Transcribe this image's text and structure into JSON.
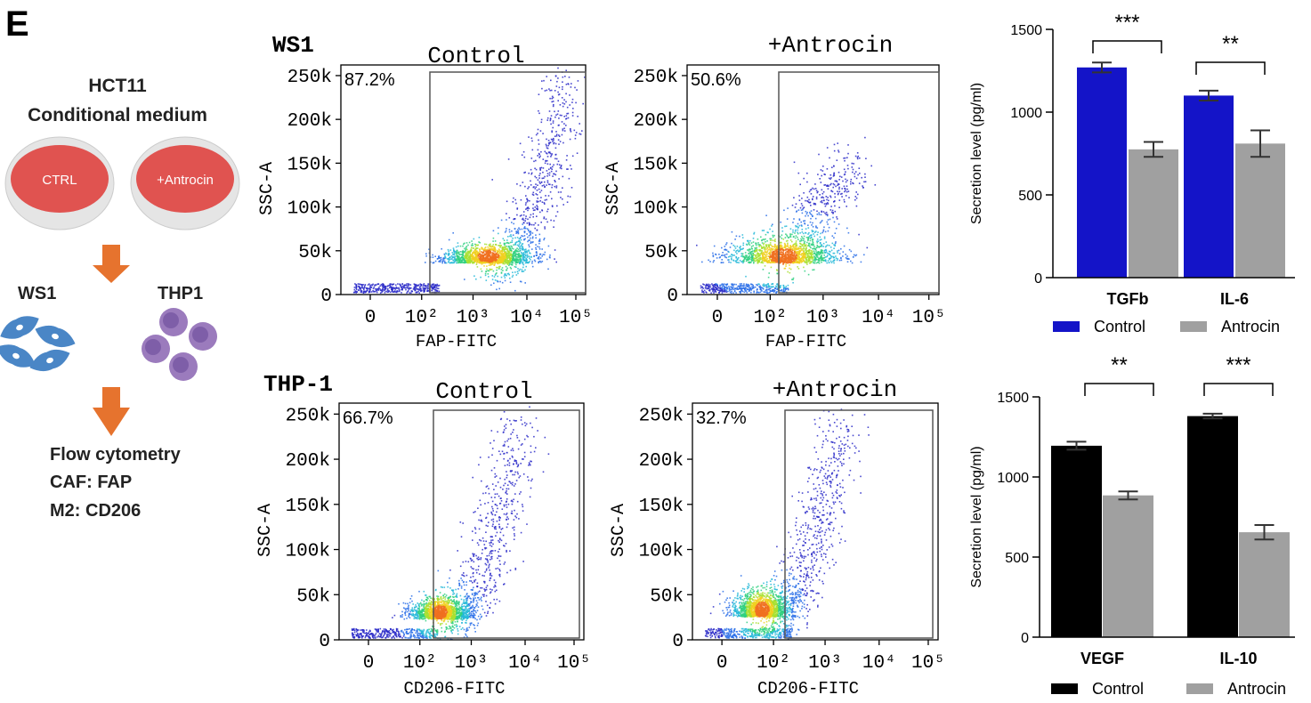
{
  "panel_letter": "E",
  "schematic": {
    "title_line1": "HCT11",
    "title_line2": "Conditional medium",
    "dish_ctrl": "CTRL",
    "dish_treated": "+Antrocin",
    "cell_left": "WS1",
    "cell_right": "THP1",
    "method_line1": "Flow cytometry",
    "method_line2": "CAF: FAP",
    "method_line3": "M2: CD206",
    "colors": {
      "dish": "#e0524f",
      "arrow": "#e6732e",
      "fibroblast": "#4a86c6",
      "monocyte": "#9b7bbd"
    }
  },
  "chart_data": [
    {
      "type": "scatter",
      "row_label": "WS1",
      "title": "Control",
      "xlabel": "FAP-FITC",
      "ylabel": "SSC-A",
      "x_ticks": [
        "0",
        "10²",
        "10³",
        "10⁴",
        "10⁵"
      ],
      "y_ticks": [
        "0",
        "50k",
        "100k",
        "150k",
        "200k",
        "250k"
      ],
      "ylim": [
        0,
        262144
      ],
      "gate_percent": "87.2%"
    },
    {
      "type": "scatter",
      "row_label": "",
      "title": "+Antrocin",
      "xlabel": "FAP-FITC",
      "ylabel": "SSC-A",
      "x_ticks": [
        "0",
        "10²",
        "10³",
        "10⁴",
        "10⁵"
      ],
      "y_ticks": [
        "0",
        "50k",
        "100k",
        "150k",
        "200k",
        "250k"
      ],
      "ylim": [
        0,
        262144
      ],
      "gate_percent": "50.6%"
    },
    {
      "type": "scatter",
      "row_label": "THP-1",
      "title": "Control",
      "xlabel": "CD206-FITC",
      "ylabel": "SSC-A",
      "x_ticks": [
        "0",
        "10²",
        "10³",
        "10⁴",
        "10⁵"
      ],
      "y_ticks": [
        "0",
        "50k",
        "100k",
        "150k",
        "200k",
        "250k"
      ],
      "ylim": [
        0,
        262144
      ],
      "gate_percent": "66.7%"
    },
    {
      "type": "scatter",
      "row_label": "",
      "title": "+Antrocin",
      "xlabel": "CD206-FITC",
      "ylabel": "SSC-A",
      "x_ticks": [
        "0",
        "10²",
        "10³",
        "10⁴",
        "10⁵"
      ],
      "y_ticks": [
        "0",
        "50k",
        "100k",
        "150k",
        "200k",
        "250k"
      ],
      "ylim": [
        0,
        262144
      ],
      "gate_percent": "32.7%"
    },
    {
      "type": "bar",
      "ylabel": "Secretion level (pg/ml)",
      "ylim": [
        0,
        1500
      ],
      "y_ticks": [
        "0",
        "500",
        "1000",
        "1500"
      ],
      "y_tick_values": [
        0,
        500,
        1000,
        1500
      ],
      "categories": [
        "TGFb",
        "IL-6"
      ],
      "series": [
        {
          "name": "Control",
          "color": "#1414c8",
          "values": [
            1270,
            1100
          ],
          "errors": [
            30,
            30
          ]
        },
        {
          "name": "Antrocin",
          "color": "#a0a0a0",
          "values": [
            775,
            810
          ],
          "errors": [
            45,
            80
          ]
        }
      ],
      "significance": [
        "***",
        "**"
      ],
      "legend_position": "bottom"
    },
    {
      "type": "bar",
      "ylabel": "Secretion level (pg/ml)",
      "ylim": [
        0,
        1500
      ],
      "y_ticks": [
        "0",
        "500",
        "1000",
        "1500"
      ],
      "y_tick_values": [
        0,
        500,
        1000,
        1500
      ],
      "categories": [
        "VEGF",
        "IL-10"
      ],
      "series": [
        {
          "name": "Control",
          "color": "#000000",
          "values": [
            1195,
            1380
          ],
          "errors": [
            25,
            15
          ]
        },
        {
          "name": "Antrocin",
          "color": "#a0a0a0",
          "values": [
            885,
            655
          ],
          "errors": [
            25,
            45
          ]
        }
      ],
      "significance": [
        "**",
        "***"
      ],
      "legend_position": "bottom"
    }
  ]
}
